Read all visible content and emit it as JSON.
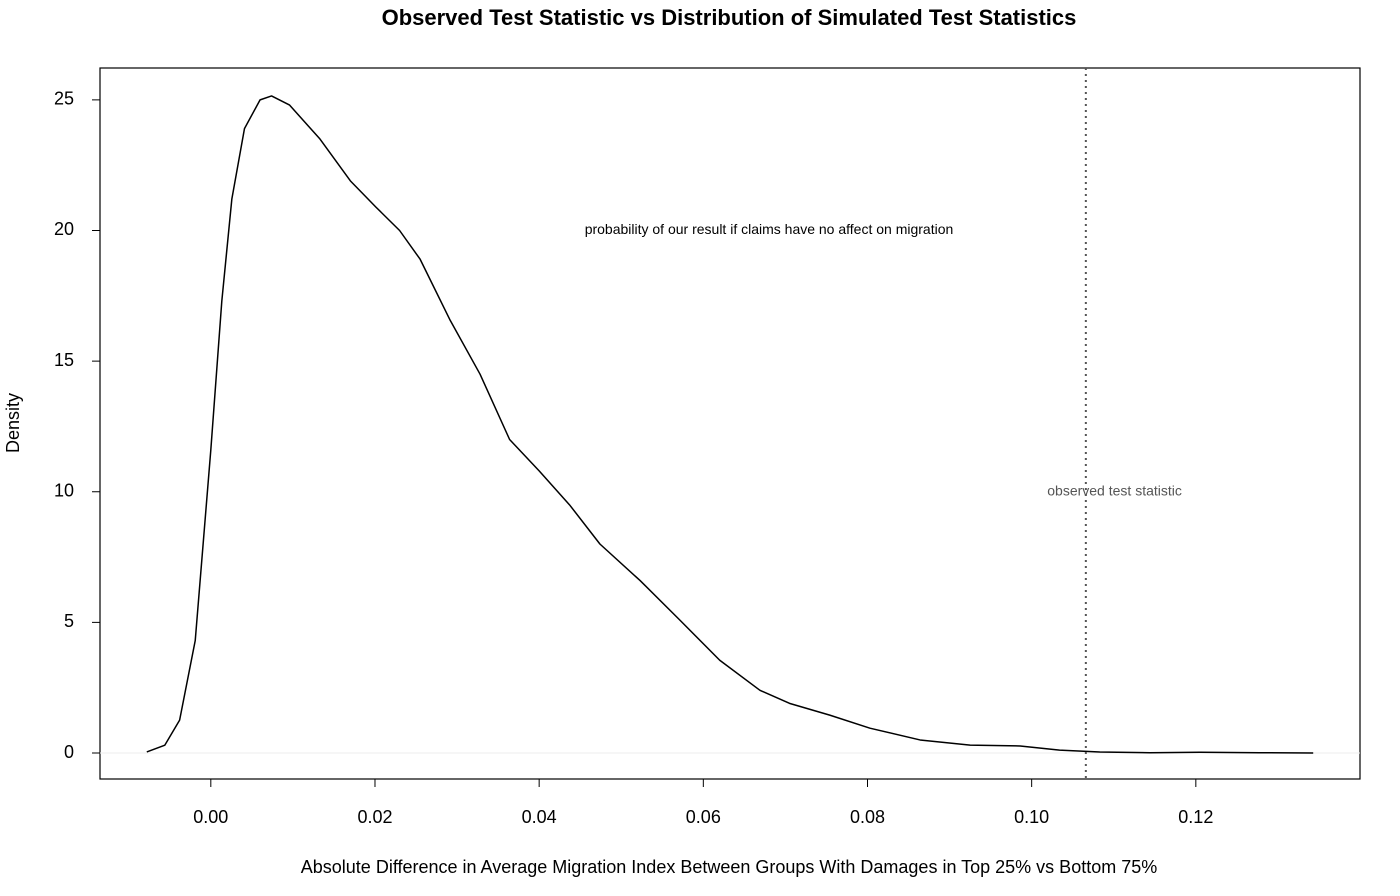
{
  "chart_data": {
    "type": "line",
    "title": "Observed Test Statistic vs Distribution of Simulated Test Statistics",
    "xlabel": "Absolute Difference in Average Migration Index Between Groups With Damages in Top 25% vs Bottom 75%",
    "ylabel": "Density",
    "x": [
      -0.0078,
      -0.0056,
      -0.0038,
      -0.0019,
      0,
      0.00134,
      0.00256,
      0.0041,
      0.006,
      0.0074,
      0.0096,
      0.0133,
      0.017,
      0.0201,
      0.023,
      0.0255,
      0.0291,
      0.0328,
      0.0364,
      0.04,
      0.0437,
      0.0474,
      0.0523,
      0.0571,
      0.062,
      0.0669,
      0.0705,
      0.0754,
      0.0803,
      0.0864,
      0.0925,
      0.0986,
      0.1034,
      0.1083,
      0.1144,
      0.1205,
      0.1278,
      0.1343
    ],
    "values": [
      0.04,
      0.3,
      1.26,
      4.3,
      11.6,
      17.3,
      21.2,
      23.9,
      25.0,
      25.15,
      24.8,
      23.5,
      21.9,
      20.9,
      20.0,
      18.9,
      16.6,
      14.5,
      12.0,
      10.8,
      9.5,
      8.0,
      6.6,
      5.1,
      3.55,
      2.4,
      1.9,
      1.45,
      0.95,
      0.5,
      0.3,
      0.27,
      0.11,
      0.04,
      0.01,
      0.03,
      0.01,
      0
    ],
    "color": "#000000",
    "xlim": [
      -0.0135,
      0.14
    ],
    "ylim": [
      -0.995,
      26.22
    ],
    "xticks": [
      {
        "value": 0,
        "label": "0.00"
      },
      {
        "value": 0.02,
        "label": "0.02"
      },
      {
        "value": 0.04,
        "label": "0.04"
      },
      {
        "value": 0.06,
        "label": "0.06"
      },
      {
        "value": 0.08,
        "label": "0.08"
      },
      {
        "value": 0.1,
        "label": "0.10"
      },
      {
        "value": 0.12,
        "label": "0.12"
      }
    ],
    "yticks": [
      0,
      5,
      10,
      15,
      20,
      25
    ],
    "vline": {
      "x": 0.1066,
      "color": "#555555",
      "linestyle": "dotted"
    },
    "annotations": [
      {
        "text": "probability of our result if claims have no affect on migration",
        "x": 0.068,
        "y": 20,
        "color": "#000000"
      },
      {
        "text": "observed test statistic",
        "x": 0.1101,
        "y": 10,
        "color": "#555555"
      }
    ]
  }
}
